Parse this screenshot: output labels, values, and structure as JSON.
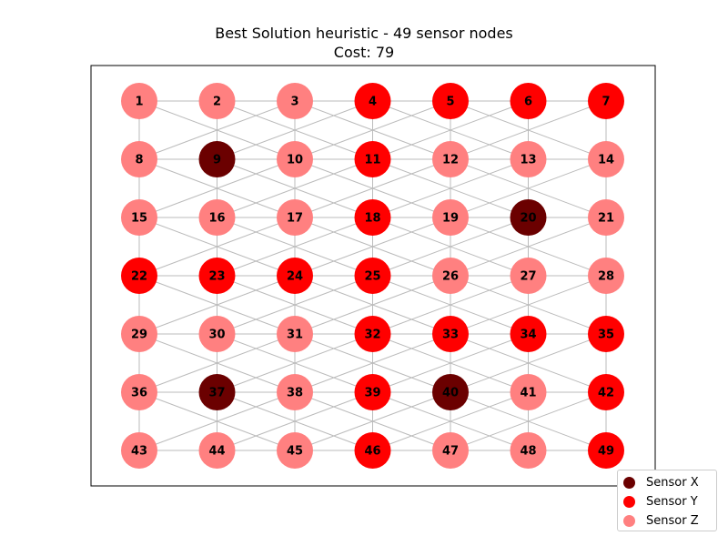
{
  "figure": {
    "title": "Best Solution heuristic - 49 sensor nodes",
    "subtitle": "Cost: 79"
  },
  "legend": {
    "items": [
      {
        "label": "Sensor X",
        "type": "X"
      },
      {
        "label": "Sensor Y",
        "type": "Y"
      },
      {
        "label": "Sensor Z",
        "type": "Z"
      }
    ]
  },
  "colors": {
    "X": "#6b0000",
    "Y": "#ff0000",
    "Z": "#ff8080",
    "edge": "#bbbbbb",
    "frame": "#000000"
  },
  "grid": {
    "rows": 7,
    "cols": 7
  },
  "nodes": [
    {
      "id": 1,
      "type": "Z"
    },
    {
      "id": 2,
      "type": "Z"
    },
    {
      "id": 3,
      "type": "Z"
    },
    {
      "id": 4,
      "type": "Y"
    },
    {
      "id": 5,
      "type": "Y"
    },
    {
      "id": 6,
      "type": "Y"
    },
    {
      "id": 7,
      "type": "Y"
    },
    {
      "id": 8,
      "type": "Z"
    },
    {
      "id": 9,
      "type": "X"
    },
    {
      "id": 10,
      "type": "Z"
    },
    {
      "id": 11,
      "type": "Y"
    },
    {
      "id": 12,
      "type": "Z"
    },
    {
      "id": 13,
      "type": "Z"
    },
    {
      "id": 14,
      "type": "Z"
    },
    {
      "id": 15,
      "type": "Z"
    },
    {
      "id": 16,
      "type": "Z"
    },
    {
      "id": 17,
      "type": "Z"
    },
    {
      "id": 18,
      "type": "Y"
    },
    {
      "id": 19,
      "type": "Z"
    },
    {
      "id": 20,
      "type": "X"
    },
    {
      "id": 21,
      "type": "Z"
    },
    {
      "id": 22,
      "type": "Y"
    },
    {
      "id": 23,
      "type": "Y"
    },
    {
      "id": 24,
      "type": "Y"
    },
    {
      "id": 25,
      "type": "Y"
    },
    {
      "id": 26,
      "type": "Z"
    },
    {
      "id": 27,
      "type": "Z"
    },
    {
      "id": 28,
      "type": "Z"
    },
    {
      "id": 29,
      "type": "Z"
    },
    {
      "id": 30,
      "type": "Z"
    },
    {
      "id": 31,
      "type": "Z"
    },
    {
      "id": 32,
      "type": "Y"
    },
    {
      "id": 33,
      "type": "Y"
    },
    {
      "id": 34,
      "type": "Y"
    },
    {
      "id": 35,
      "type": "Y"
    },
    {
      "id": 36,
      "type": "Z"
    },
    {
      "id": 37,
      "type": "X"
    },
    {
      "id": 38,
      "type": "Z"
    },
    {
      "id": 39,
      "type": "Y"
    },
    {
      "id": 40,
      "type": "X"
    },
    {
      "id": 41,
      "type": "Z"
    },
    {
      "id": 42,
      "type": "Y"
    },
    {
      "id": 43,
      "type": "Z"
    },
    {
      "id": 44,
      "type": "Z"
    },
    {
      "id": 45,
      "type": "Z"
    },
    {
      "id": 46,
      "type": "Y"
    },
    {
      "id": 47,
      "type": "Z"
    },
    {
      "id": 48,
      "type": "Z"
    },
    {
      "id": 49,
      "type": "Y"
    }
  ]
}
